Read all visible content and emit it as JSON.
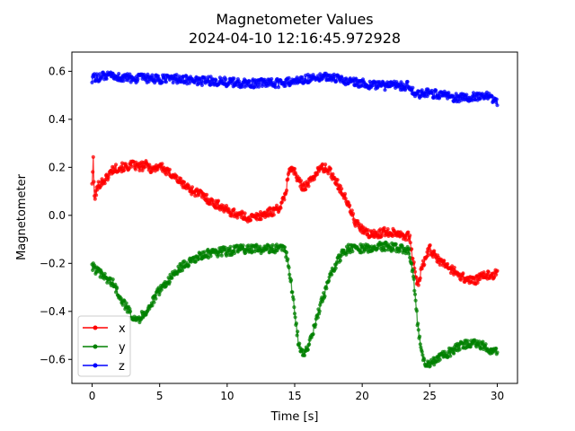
{
  "chart_data": {
    "type": "line",
    "title": "Magnetometer Values",
    "subtitle": "2024-04-10 12:16:45.972928",
    "xlabel": "Time [s]",
    "ylabel": "Magnetometer",
    "xlim": [
      -1.5,
      31.5
    ],
    "ylim": [
      -0.7,
      0.68
    ],
    "xticks": [
      0,
      5,
      10,
      15,
      20,
      25,
      30
    ],
    "yticks": [
      -0.6,
      -0.4,
      -0.2,
      0.0,
      0.2,
      0.4,
      0.6
    ],
    "ytick_labels": [
      "−0.6",
      "−0.4",
      "−0.2",
      "0.0",
      "0.2",
      "0.4",
      "0.6"
    ],
    "grid": false,
    "legend_position": "lower-left",
    "series": [
      {
        "name": "x",
        "color": "#ff0000",
        "points": [
          [
            0.0,
            0.14
          ],
          [
            0.1,
            0.24
          ],
          [
            0.15,
            0.07
          ],
          [
            0.5,
            0.13
          ],
          [
            1.0,
            0.15
          ],
          [
            1.5,
            0.19
          ],
          [
            2.0,
            0.2
          ],
          [
            2.5,
            0.2
          ],
          [
            3.0,
            0.21
          ],
          [
            3.5,
            0.2
          ],
          [
            4.0,
            0.21
          ],
          [
            4.5,
            0.19
          ],
          [
            5.0,
            0.21
          ],
          [
            5.5,
            0.18
          ],
          [
            6.0,
            0.17
          ],
          [
            6.5,
            0.14
          ],
          [
            7.0,
            0.12
          ],
          [
            7.5,
            0.1
          ],
          [
            8.0,
            0.09
          ],
          [
            8.5,
            0.07
          ],
          [
            9.0,
            0.05
          ],
          [
            9.5,
            0.04
          ],
          [
            10.0,
            0.02
          ],
          [
            10.5,
            0.01
          ],
          [
            11.0,
            0.0
          ],
          [
            11.5,
            -0.01
          ],
          [
            12.0,
            -0.01
          ],
          [
            12.5,
            0.0
          ],
          [
            13.0,
            0.01
          ],
          [
            13.5,
            0.02
          ],
          [
            14.0,
            0.04
          ],
          [
            14.3,
            0.08
          ],
          [
            14.6,
            0.2
          ],
          [
            15.0,
            0.18
          ],
          [
            15.3,
            0.14
          ],
          [
            15.6,
            0.12
          ],
          [
            16.0,
            0.13
          ],
          [
            16.5,
            0.17
          ],
          [
            17.0,
            0.2
          ],
          [
            17.5,
            0.19
          ],
          [
            18.0,
            0.15
          ],
          [
            18.5,
            0.1
          ],
          [
            19.0,
            0.04
          ],
          [
            19.5,
            -0.03
          ],
          [
            20.0,
            -0.06
          ],
          [
            20.5,
            -0.08
          ],
          [
            21.0,
            -0.08
          ],
          [
            21.5,
            -0.07
          ],
          [
            22.0,
            -0.07
          ],
          [
            22.5,
            -0.07
          ],
          [
            23.0,
            -0.08
          ],
          [
            23.5,
            -0.09
          ],
          [
            23.8,
            -0.2
          ],
          [
            24.0,
            -0.27
          ],
          [
            24.2,
            -0.28
          ],
          [
            24.5,
            -0.2
          ],
          [
            25.0,
            -0.14
          ],
          [
            25.5,
            -0.18
          ],
          [
            26.0,
            -0.2
          ],
          [
            26.5,
            -0.22
          ],
          [
            27.0,
            -0.24
          ],
          [
            27.5,
            -0.26
          ],
          [
            28.0,
            -0.27
          ],
          [
            28.5,
            -0.27
          ],
          [
            29.0,
            -0.25
          ],
          [
            29.5,
            -0.25
          ],
          [
            30.0,
            -0.24
          ]
        ]
      },
      {
        "name": "y",
        "color": "#008000",
        "points": [
          [
            0.0,
            -0.21
          ],
          [
            0.5,
            -0.24
          ],
          [
            1.0,
            -0.26
          ],
          [
            1.5,
            -0.28
          ],
          [
            2.0,
            -0.33
          ],
          [
            2.5,
            -0.38
          ],
          [
            3.0,
            -0.42
          ],
          [
            3.5,
            -0.43
          ],
          [
            4.0,
            -0.4
          ],
          [
            4.5,
            -0.36
          ],
          [
            5.0,
            -0.31
          ],
          [
            5.5,
            -0.28
          ],
          [
            6.0,
            -0.25
          ],
          [
            6.5,
            -0.22
          ],
          [
            7.0,
            -0.2
          ],
          [
            7.5,
            -0.19
          ],
          [
            8.0,
            -0.17
          ],
          [
            8.5,
            -0.16
          ],
          [
            9.0,
            -0.16
          ],
          [
            9.5,
            -0.15
          ],
          [
            10.0,
            -0.15
          ],
          [
            11.0,
            -0.14
          ],
          [
            12.0,
            -0.14
          ],
          [
            13.0,
            -0.14
          ],
          [
            13.5,
            -0.14
          ],
          [
            14.0,
            -0.13
          ],
          [
            14.3,
            -0.14
          ],
          [
            14.6,
            -0.23
          ],
          [
            14.9,
            -0.35
          ],
          [
            15.1,
            -0.45
          ],
          [
            15.3,
            -0.54
          ],
          [
            15.6,
            -0.58
          ],
          [
            16.0,
            -0.55
          ],
          [
            16.5,
            -0.46
          ],
          [
            17.0,
            -0.36
          ],
          [
            17.5,
            -0.27
          ],
          [
            18.0,
            -0.21
          ],
          [
            18.5,
            -0.16
          ],
          [
            19.0,
            -0.14
          ],
          [
            19.5,
            -0.13
          ],
          [
            20.0,
            -0.14
          ],
          [
            21.0,
            -0.13
          ],
          [
            22.0,
            -0.13
          ],
          [
            23.0,
            -0.14
          ],
          [
            23.5,
            -0.15
          ],
          [
            23.8,
            -0.25
          ],
          [
            24.1,
            -0.45
          ],
          [
            24.4,
            -0.57
          ],
          [
            24.7,
            -0.63
          ],
          [
            25.0,
            -0.62
          ],
          [
            25.5,
            -0.6
          ],
          [
            26.0,
            -0.58
          ],
          [
            26.5,
            -0.57
          ],
          [
            27.0,
            -0.55
          ],
          [
            27.5,
            -0.54
          ],
          [
            28.0,
            -0.53
          ],
          [
            28.5,
            -0.54
          ],
          [
            29.0,
            -0.54
          ],
          [
            29.5,
            -0.56
          ],
          [
            30.0,
            -0.57
          ]
        ]
      },
      {
        "name": "z",
        "color": "#0000ff",
        "points": [
          [
            0.0,
            0.57
          ],
          [
            1.0,
            0.58
          ],
          [
            2.0,
            0.575
          ],
          [
            3.0,
            0.57
          ],
          [
            4.0,
            0.57
          ],
          [
            5.0,
            0.565
          ],
          [
            6.0,
            0.57
          ],
          [
            7.0,
            0.565
          ],
          [
            8.0,
            0.56
          ],
          [
            9.0,
            0.56
          ],
          [
            10.0,
            0.555
          ],
          [
            11.0,
            0.55
          ],
          [
            12.0,
            0.55
          ],
          [
            13.0,
            0.55
          ],
          [
            14.0,
            0.55
          ],
          [
            15.0,
            0.56
          ],
          [
            16.0,
            0.57
          ],
          [
            17.0,
            0.58
          ],
          [
            18.0,
            0.57
          ],
          [
            19.0,
            0.56
          ],
          [
            20.0,
            0.55
          ],
          [
            21.0,
            0.54
          ],
          [
            22.0,
            0.54
          ],
          [
            23.0,
            0.54
          ],
          [
            23.5,
            0.54
          ],
          [
            24.0,
            0.5
          ],
          [
            25.0,
            0.51
          ],
          [
            26.0,
            0.5
          ],
          [
            27.0,
            0.49
          ],
          [
            28.0,
            0.49
          ],
          [
            29.0,
            0.5
          ],
          [
            29.5,
            0.49
          ],
          [
            30.0,
            0.47
          ]
        ]
      }
    ]
  }
}
